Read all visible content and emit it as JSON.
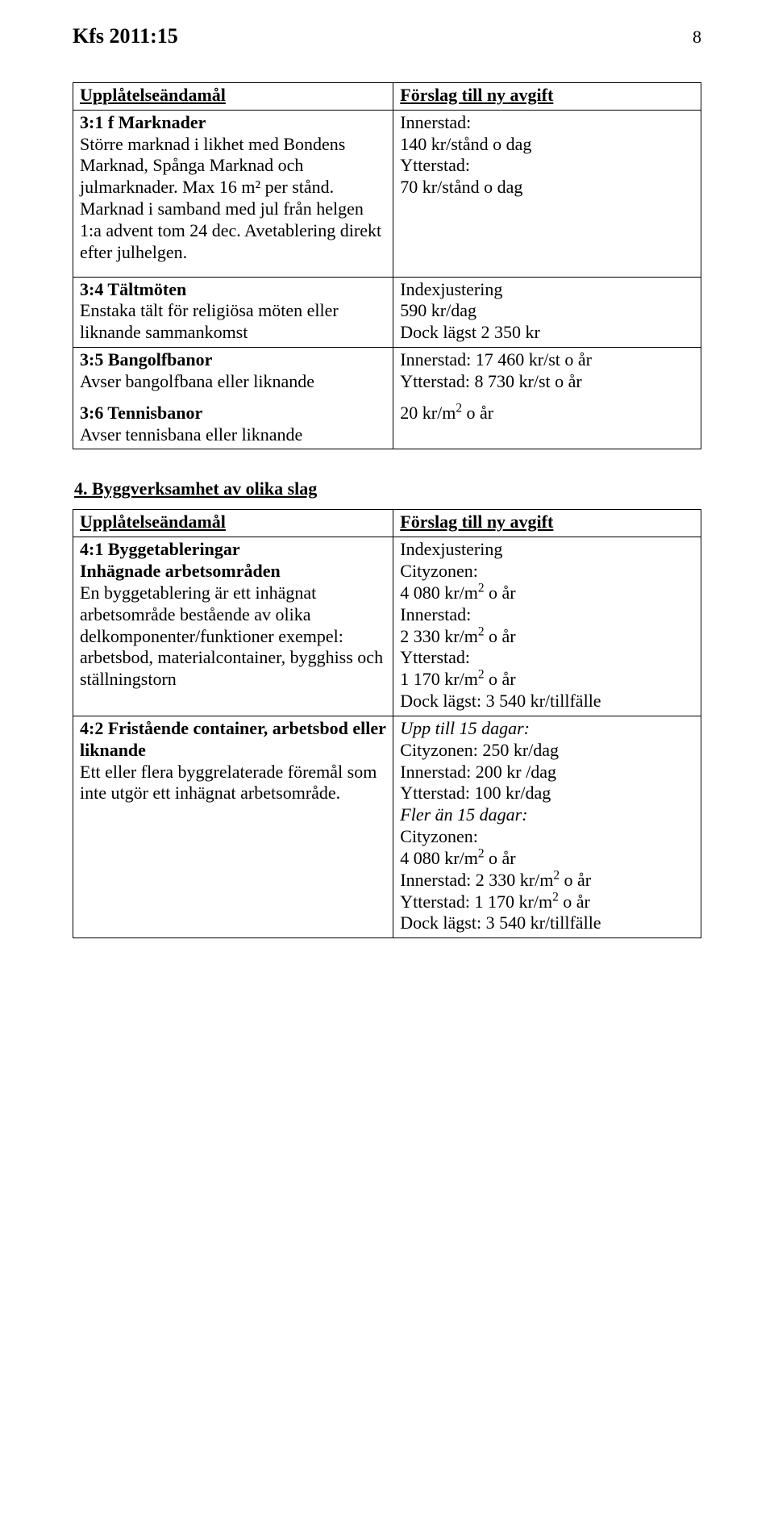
{
  "header": {
    "doc_id": "Kfs 2011:15",
    "page_number": "8"
  },
  "table1": {
    "head_left": "Upplåtelseändamål",
    "head_right": "Förslag till ny avgift",
    "rows": [
      {
        "left_title": "3:1 f Marknader",
        "left_body": "Större marknad i likhet med Bondens Marknad, Spånga Marknad och julmarknader. Max 16 m² per stånd. Marknad i samband med jul från helgen 1:a advent tom 24 dec. Avetablering direkt efter julhelgen.",
        "right_lines": [
          "Innerstad:",
          "140 kr/stånd o dag",
          "Ytterstad:",
          "70 kr/stånd o dag"
        ]
      },
      {
        "left_title": "3:4 Tältmöten",
        "left_body": "Enstaka tält för religiösa möten eller liknande sammankomst",
        "right_lines": [
          "Indexjustering",
          "590 kr/dag",
          "Dock lägst 2 350 kr"
        ]
      },
      {
        "left_title_a": "3:5 Bangolfbanor",
        "left_body_a": "Avser bangolfbana eller liknande",
        "left_title_b": "3:6 Tennisbanor",
        "left_body_b": "Avser tennisbana eller liknande",
        "right_lines_a": [
          "Innerstad: 17 460 kr/st o år",
          "Ytterstad: 8 730 kr/st o år"
        ],
        "right_extra": "20 kr/m",
        "right_extra_sup": "2",
        "right_extra_tail": " o år"
      }
    ]
  },
  "section2_title": "4. Byggverksamhet av olika slag",
  "table2": {
    "head_left": "Upplåtelseändamål",
    "head_right": "Förslag till ny avgift",
    "rows": [
      {
        "left_title": "4:1 Byggetableringar",
        "left_sub_bold": "Inhägnade arbetsområden",
        "left_body": "En byggetablering är ett inhägnat arbetsområde bestående av olika delkomponenter/funktioner exempel: arbetsbod, materialcontainer, bygghiss och ställningstorn",
        "right_lines": [
          "Indexjustering",
          "Cityzonen:",
          "4 080 kr/m{SUP2} o år",
          "Innerstad:",
          "2 330 kr/m{SUP2} o år",
          "Ytterstad:",
          "1 170 kr/m{SUP2} o år",
          "Dock lägst: 3 540 kr/tillfälle"
        ]
      },
      {
        "left_title": "4:2 Fristående container, arbetsbod eller liknande",
        "left_body": "Ett eller flera byggrelaterade föremål som inte utgör ett inhägnat arbetsområde.",
        "right_lines": [
          "{I}Upp till 15 dagar:{/I}",
          "Cityzonen: 250 kr/dag",
          "Innerstad: 200 kr /dag",
          "Ytterstad: 100 kr/dag",
          "{I}Fler än 15 dagar:{/I}",
          "Cityzonen:",
          "4 080 kr/m{SUP2} o år",
          "Innerstad: 2 330 kr/m{SUP2} o år",
          "Ytterstad: 1 170 kr/m{SUP2} o år",
          "Dock lägst: 3 540 kr/tillfälle"
        ]
      }
    ]
  }
}
